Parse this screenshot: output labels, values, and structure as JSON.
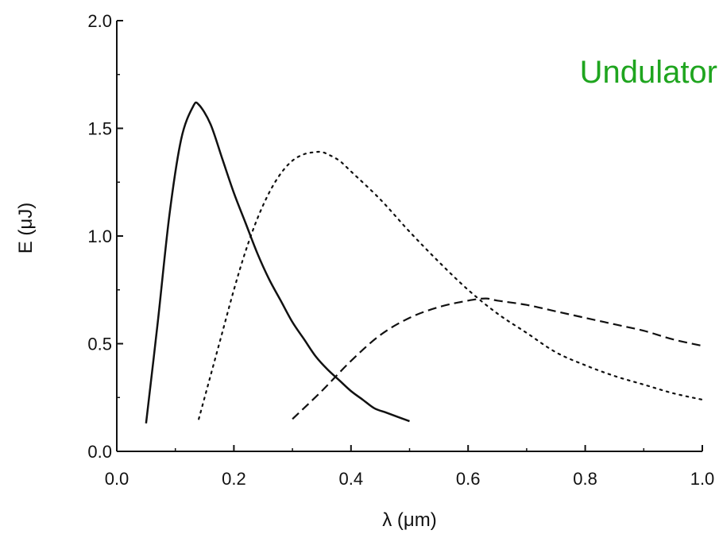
{
  "chart_data": {
    "type": "line",
    "title": "",
    "annotation": "Undulator",
    "annotation_color": "#1fa51f",
    "xlabel": "λ (μm)",
    "ylabel": "E (μJ)",
    "xlim": [
      0.0,
      1.0
    ],
    "ylim": [
      0.0,
      2.0
    ],
    "xticks": [
      0.0,
      0.2,
      0.4,
      0.6,
      0.8,
      1.0
    ],
    "xtick_labels": [
      "0.0",
      "0.2",
      "0.4",
      "0.6",
      "0.8",
      "1.0"
    ],
    "yticks": [
      0.0,
      0.5,
      1.0,
      1.5,
      2.0
    ],
    "ytick_labels": [
      "0.0",
      "0.5",
      "1.0",
      "1.5",
      "2.0"
    ],
    "grid": false,
    "legend": "none",
    "series": [
      {
        "style": "solid",
        "x": [
          0.05,
          0.07,
          0.09,
          0.11,
          0.13,
          0.14,
          0.16,
          0.18,
          0.2,
          0.22,
          0.24,
          0.26,
          0.28,
          0.3,
          0.32,
          0.34,
          0.36,
          0.38,
          0.4,
          0.42,
          0.44,
          0.46,
          0.48,
          0.5
        ],
        "y": [
          0.13,
          0.6,
          1.1,
          1.45,
          1.6,
          1.61,
          1.52,
          1.36,
          1.2,
          1.06,
          0.92,
          0.8,
          0.7,
          0.6,
          0.52,
          0.44,
          0.38,
          0.33,
          0.28,
          0.24,
          0.2,
          0.18,
          0.16,
          0.14
        ]
      },
      {
        "style": "dotted",
        "x": [
          0.14,
          0.16,
          0.18,
          0.2,
          0.22,
          0.24,
          0.26,
          0.28,
          0.3,
          0.32,
          0.34,
          0.35,
          0.36,
          0.38,
          0.4,
          0.45,
          0.5,
          0.55,
          0.6,
          0.65,
          0.7,
          0.75,
          0.8,
          0.85,
          0.9,
          0.95,
          1.0
        ],
        "y": [
          0.15,
          0.35,
          0.55,
          0.75,
          0.93,
          1.08,
          1.2,
          1.29,
          1.35,
          1.38,
          1.39,
          1.39,
          1.38,
          1.35,
          1.3,
          1.17,
          1.02,
          0.88,
          0.75,
          0.64,
          0.55,
          0.46,
          0.4,
          0.35,
          0.31,
          0.27,
          0.24
        ]
      },
      {
        "style": "dashed",
        "x": [
          0.3,
          0.35,
          0.4,
          0.45,
          0.5,
          0.55,
          0.6,
          0.63,
          0.65,
          0.7,
          0.75,
          0.8,
          0.85,
          0.9,
          0.95,
          1.0
        ],
        "y": [
          0.15,
          0.28,
          0.42,
          0.54,
          0.62,
          0.67,
          0.7,
          0.71,
          0.7,
          0.68,
          0.65,
          0.62,
          0.59,
          0.56,
          0.52,
          0.49
        ]
      }
    ]
  }
}
